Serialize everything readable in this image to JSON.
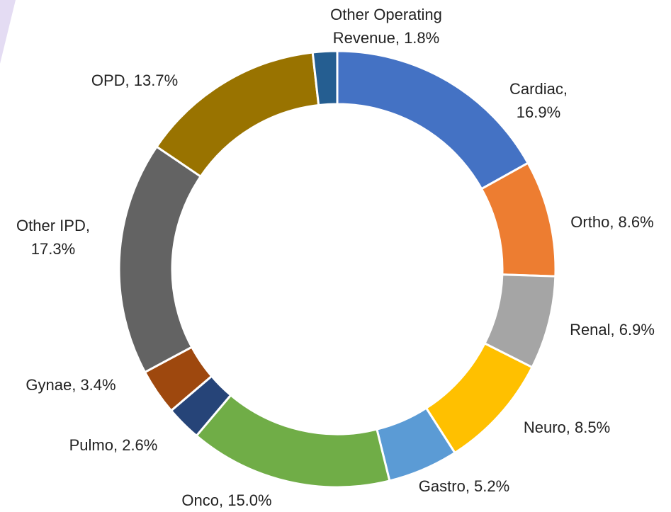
{
  "chart_data": {
    "type": "donut",
    "values": [
      16.9,
      8.6,
      6.9,
      8.5,
      5.2,
      15.0,
      2.6,
      3.4,
      17.3,
      13.7,
      1.8
    ],
    "value_labels": [
      [
        "Cardiac,",
        "16.9%"
      ],
      [
        "Ortho, 8.6%"
      ],
      [
        "Renal, 6.9%"
      ],
      [
        "Neuro, 8.5%"
      ],
      [
        "Gastro, 5.2%"
      ],
      [
        "Onco, 15.0%"
      ],
      [
        "Pulmo, 2.6%"
      ],
      [
        "Gynae, 3.4%"
      ],
      [
        "Other IPD,",
        "17.3%"
      ],
      [
        "OPD, 13.7%"
      ],
      [
        "Other Operating",
        "Revenue, 1.8%"
      ]
    ],
    "colors": [
      "#4472c4",
      "#ed7d31",
      "#a5a5a5",
      "#ffc000",
      "#5b9bd5",
      "#70ad47",
      "#264478",
      "#9e480e",
      "#636363",
      "#997300",
      "#255e91"
    ]
  }
}
